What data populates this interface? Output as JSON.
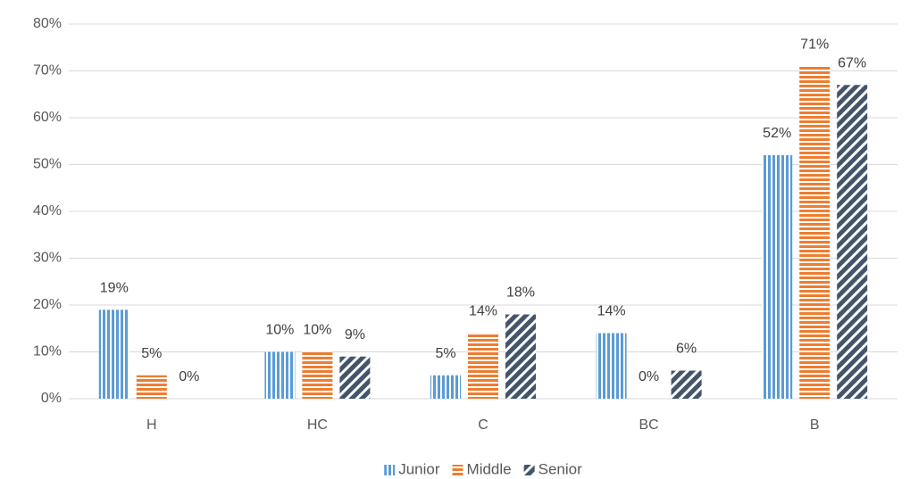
{
  "chart_data": {
    "type": "bar",
    "categories": [
      "H",
      "HC",
      "C",
      "BC",
      "B"
    ],
    "series": [
      {
        "name": "Junior",
        "color": "#5b9bd5",
        "hatch": "vertical",
        "values": [
          19,
          10,
          5,
          14,
          52
        ],
        "value_labels": [
          "19%",
          "10%",
          "5%",
          "14%",
          "52%"
        ]
      },
      {
        "name": "Middle",
        "color": "#ed7d31",
        "hatch": "horizontal",
        "values": [
          5,
          10,
          14,
          0,
          71
        ],
        "value_labels": [
          "5%",
          "10%",
          "14%",
          "0%",
          "71%"
        ]
      },
      {
        "name": "Senior",
        "color": "#44546a",
        "hatch": "diagonal",
        "values": [
          0,
          9,
          18,
          6,
          67
        ],
        "value_labels": [
          "0%",
          "9%",
          "18%",
          "6%",
          "67%"
        ]
      }
    ],
    "ylim": [
      0,
      80
    ],
    "yticks": [
      {
        "value": 0,
        "label": "0%"
      },
      {
        "value": 10,
        "label": "10%"
      },
      {
        "value": 20,
        "label": "20%"
      },
      {
        "value": 30,
        "label": "30%"
      },
      {
        "value": 40,
        "label": "40%"
      },
      {
        "value": 50,
        "label": "50%"
      },
      {
        "value": 60,
        "label": "60%"
      },
      {
        "value": 70,
        "label": "70%"
      },
      {
        "value": 80,
        "label": "80%"
      }
    ],
    "grid": true,
    "legend": "bottom"
  }
}
